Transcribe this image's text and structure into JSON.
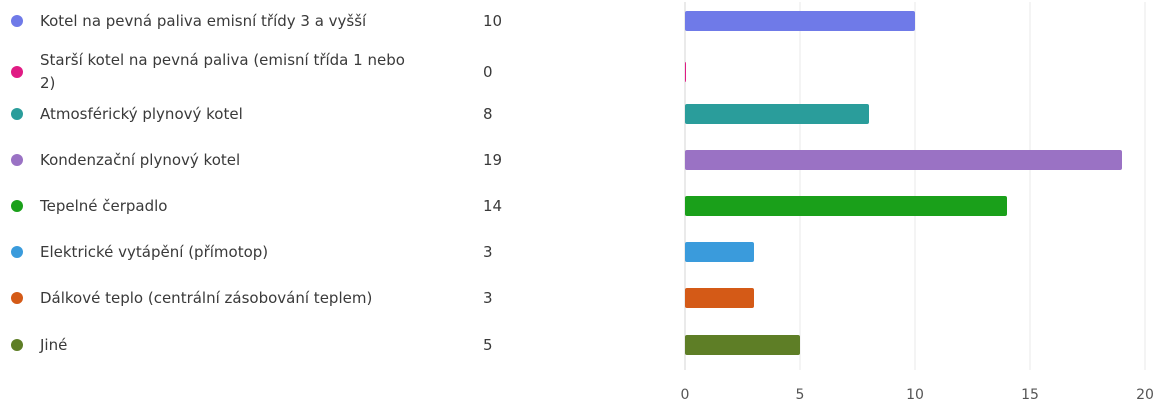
{
  "chart_data": {
    "type": "bar",
    "orientation": "horizontal",
    "categories": [
      "Kotel na pevná paliva emisní třídy 3 a vyšší",
      "Starší kotel na pevná paliva (emisní třída 1 nebo 2)",
      "Atmosférický plynový kotel",
      "Kondenzační plynový kotel",
      "Tepelné čerpadlo",
      "Elektrické vytápění (přímotop)",
      "Dálkové teplo (centrální zásobování teplem)",
      "Jiné"
    ],
    "values": [
      10,
      0,
      8,
      19,
      14,
      3,
      3,
      5
    ],
    "colors": [
      "#6f7ae8",
      "#e01b84",
      "#2a9d9b",
      "#9a72c4",
      "#1aa01a",
      "#3a9bdc",
      "#d45a17",
      "#5e7e26"
    ],
    "xlim": [
      0,
      20
    ],
    "xticks": [
      0,
      5,
      10,
      15,
      20
    ],
    "grid": true,
    "legend": "left"
  }
}
